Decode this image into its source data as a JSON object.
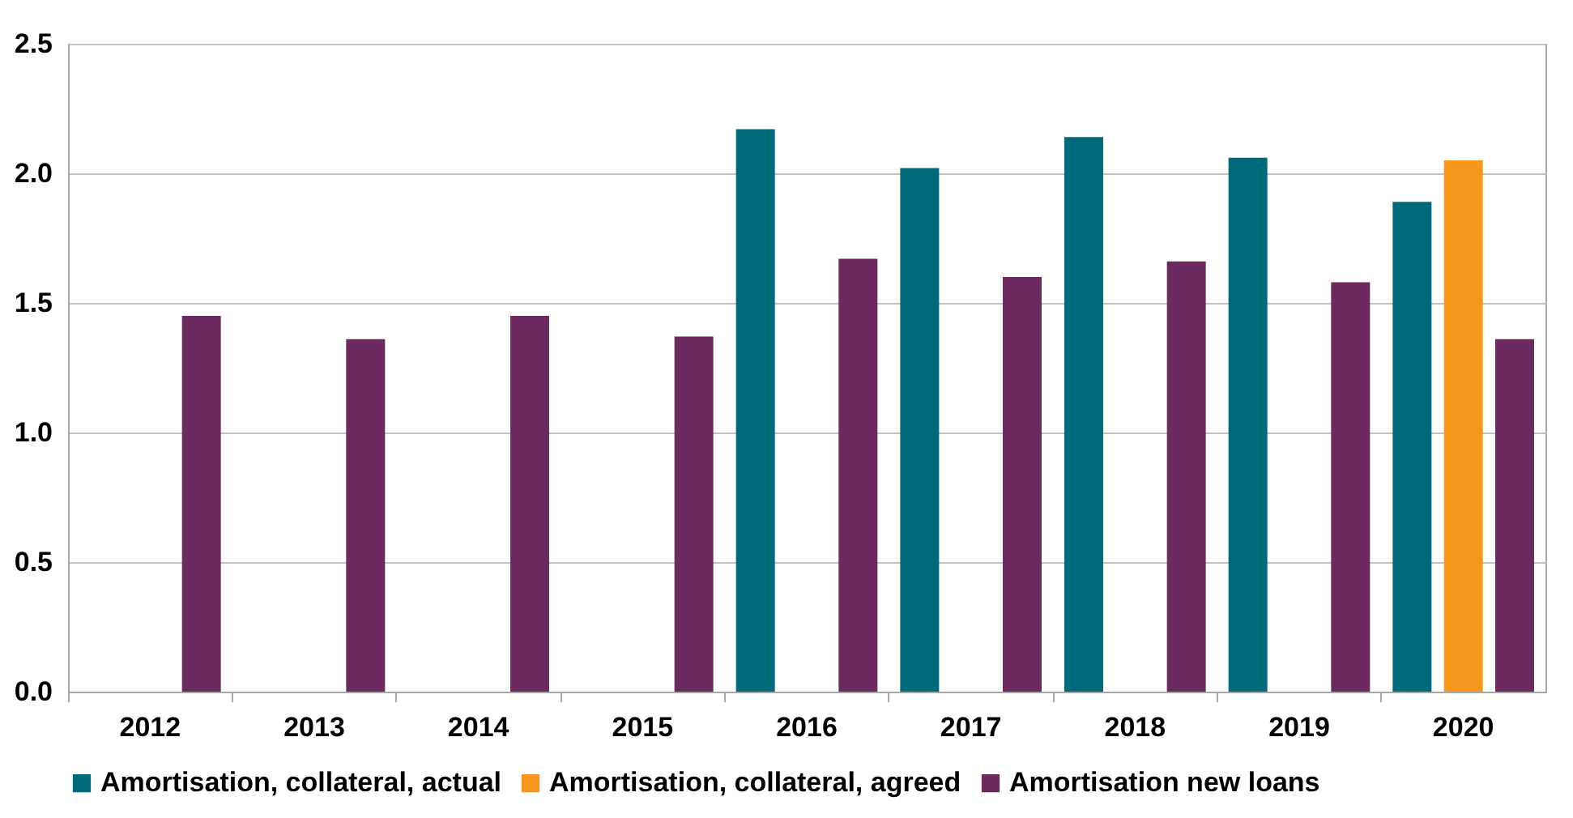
{
  "chart_data": {
    "type": "bar",
    "categories": [
      "2012",
      "2013",
      "2014",
      "2015",
      "2016",
      "2017",
      "2018",
      "2019",
      "2020"
    ],
    "series": [
      {
        "name": "Amortisation, collateral, actual",
        "color": "#006a7b",
        "values": [
          null,
          null,
          null,
          null,
          2.17,
          2.02,
          2.14,
          2.06,
          1.89
        ]
      },
      {
        "name": "Amortisation, collateral, agreed",
        "color": "#f7971e",
        "values": [
          null,
          null,
          null,
          null,
          null,
          null,
          null,
          null,
          2.05
        ]
      },
      {
        "name": "Amortisation new loans",
        "color": "#6c2b5e",
        "values": [
          1.45,
          1.36,
          1.45,
          1.37,
          1.67,
          1.6,
          1.66,
          1.58,
          1.36
        ]
      }
    ],
    "ylim": [
      0,
      2.5
    ],
    "yticks": [
      {
        "value": 0,
        "label": "0.0"
      },
      0.5,
      {
        "value": 1,
        "label": "1.0"
      },
      1.5,
      {
        "value": 2,
        "label": "2.0"
      },
      2.5
    ],
    "grid": "y",
    "legend": "bottom"
  }
}
